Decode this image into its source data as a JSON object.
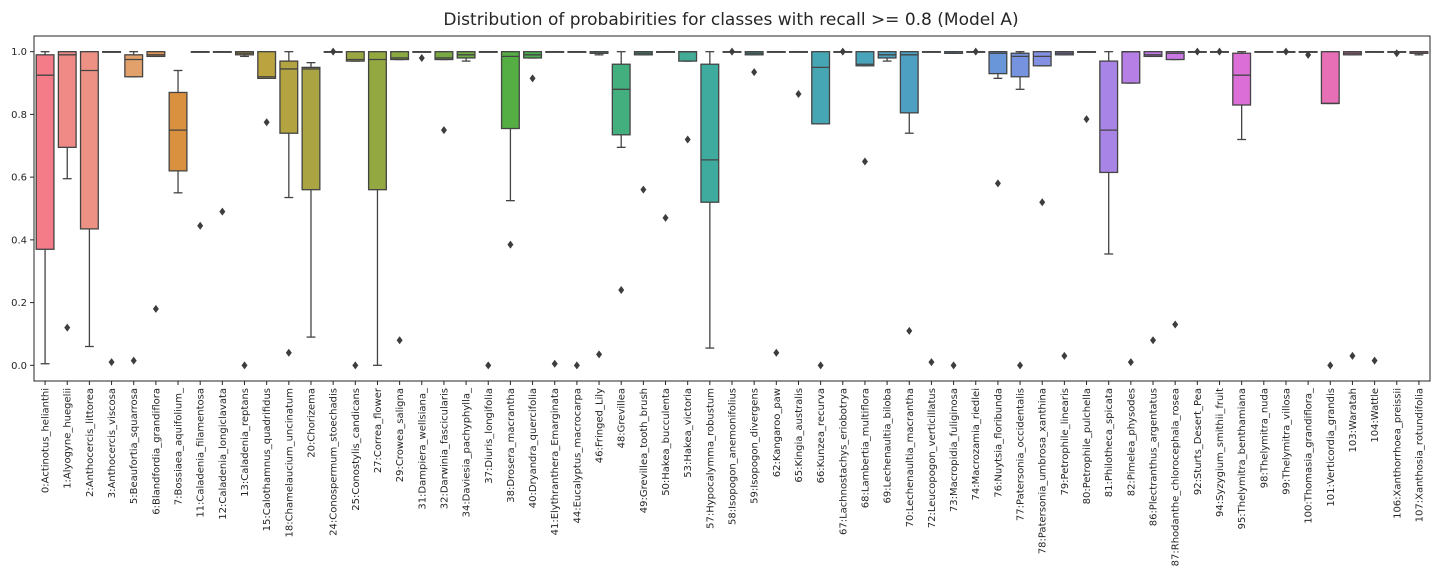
{
  "chart_data": {
    "type": "box",
    "title": "Distribution of probabirities for classes with recall >= 0.8 (Model A)",
    "xlabel": "",
    "ylabel": "",
    "ylim": [
      -0.05,
      1.05
    ],
    "yticks": [
      "0.0",
      "0.2",
      "0.4",
      "0.6",
      "0.8",
      "1.0"
    ],
    "grid": false,
    "legend": "none",
    "categories": [
      "0:Actinotus_helianthi",
      "1:Alyogyne_huegelii",
      "2:Anthocercis_littorea",
      "3:Anthocercis_viscosa",
      "5:Beaufortia_squarrosa",
      "6:Blandfordia_grandiflora",
      "7:Bossiaea_aquifolium_",
      "11:Caladenia_filamentosa",
      "12:Caladenia_longiclavata",
      "13:Caladenia_reptans",
      "15:Calothamnus_quadrifidus",
      "18:Chamelaucium_uncinatum",
      "20:Chorizema",
      "24:Conospermum_stoechadis",
      "25:Conostylis_candicans",
      "27:Correa_flower",
      "29:Crowea_saligna",
      "31:Dampiera_wellsiana_",
      "32:Darwinia_fascicularis",
      "34:Daviesia_pachyphylla_",
      "37:Diuris_longifolia",
      "38:Drosera_macrantha",
      "40:Dryandra_quercifolia",
      "41:Elythranthera_Emarginata",
      "44:Eucalyptus_macrocarpa",
      "46:Fringed_Lily",
      "48:Grevillea",
      "49:Grevillea_tooth_brush",
      "50:Hakea_bucculenta",
      "53:Hakea_victoria",
      "57:Hypocalymma_robustum",
      "58:Isopogon_anemonifolius",
      "59:Isopogon_divergens",
      "62:Kangaroo_paw",
      "65:Kingia_australis",
      "66:Kunzea_recurva",
      "67:Lachnostachys_eriobotrya",
      "68:Lambertia_multiflora",
      "69:Lechenaultia_biloba",
      "70:Lechenaultia_macrantha",
      "72:Leucopogon_verticillatus",
      "73:Macropidia_fuliginosa",
      "74:Macrozamia_riedlei",
      "76:Nuytsia_floribunda",
      "77:Patersonia_occidentalis",
      "78:Patersonia_umbrosa_xanthina",
      "79:Petrophile_linearis",
      "80:Petrophile_pulchella",
      "81:Philotheca_spicata",
      "82:Pimelea_physodes",
      "86:Plectranthus_argentatus",
      "87:Rhodanthe_chlorocephala_rosea",
      "92:Sturts_Desert_Pea",
      "94:Syzygium_smithii_fruit",
      "95:Thelymitra_benthamiana",
      "98:Thelymitra_nuda",
      "99:Thelymitra_villosa",
      "100:Thomasia_grandiflora_",
      "101:Verticordia_grandis",
      "103:Waratah",
      "104:Wattle",
      "106:Xanthorrhoea_preissii",
      "107:Xanthosia_rotundifolia"
    ],
    "colors": [
      "#f37c88",
      "#ef8a86",
      "#ec9184",
      "#e99a79",
      "#e2a06a",
      "#de9652",
      "#d9913f",
      "#d2963f",
      "#c99c3f",
      "#c2a13f",
      "#bba440",
      "#b3a441",
      "#aba443",
      "#a3a542",
      "#9aa641",
      "#93a841",
      "#8ba941",
      "#81a941",
      "#79aa42",
      "#6fab43",
      "#62ad45",
      "#55ae44",
      "#4aae4e",
      "#44ae60",
      "#43ae6c",
      "#43ae75",
      "#43ae7e",
      "#43ad87",
      "#43ad8f",
      "#43ac97",
      "#3eab9e",
      "#42aba4",
      "#43a9a8",
      "#44a8ad",
      "#45a7b0",
      "#46a6b4",
      "#48a5b7",
      "#49a4bb",
      "#4ba2bf",
      "#4ea0c3",
      "#539ec9",
      "#589bcf",
      "#5e99d4",
      "#6896d9",
      "#7593de",
      "#8490e2",
      "#908ce4",
      "#9b87e6",
      "#a884e6",
      "#b57fe6",
      "#c07ae6",
      "#c978e4",
      "#d075e1",
      "#d772dd",
      "#dc6fd7",
      "#e06ed0",
      "#e36ec8",
      "#e56ebf",
      "#e76fb5",
      "#e870aa",
      "#e9729f",
      "#ea7495",
      "#ea768c"
    ],
    "series": [
      {
        "q1": 0.37,
        "median": 0.925,
        "q3": 0.99,
        "whislo": 0.005,
        "whishi": 1.0,
        "fliers": []
      },
      {
        "q1": 0.695,
        "median": 0.99,
        "q3": 1.0,
        "whislo": 0.595,
        "whishi": 1.0,
        "fliers": [
          0.12
        ]
      },
      {
        "q1": 0.435,
        "median": 0.94,
        "q3": 1.0,
        "whislo": 0.06,
        "whishi": 1.0,
        "fliers": []
      },
      {
        "q1": 1.0,
        "median": 1.0,
        "q3": 1.0,
        "whislo": 1.0,
        "whishi": 1.0,
        "fliers": [
          0.01
        ]
      },
      {
        "q1": 0.92,
        "median": 0.975,
        "q3": 0.99,
        "whislo": 0.92,
        "whishi": 1.0,
        "fliers": [
          0.015
        ]
      },
      {
        "q1": 0.985,
        "median": 0.99,
        "q3": 1.0,
        "whislo": 0.985,
        "whishi": 1.0,
        "fliers": [
          0.18
        ]
      },
      {
        "q1": 0.62,
        "median": 0.75,
        "q3": 0.87,
        "whislo": 0.55,
        "whishi": 0.94,
        "fliers": []
      },
      {
        "q1": 1.0,
        "median": 1.0,
        "q3": 1.0,
        "whislo": 1.0,
        "whishi": 1.0,
        "fliers": [
          0.445
        ]
      },
      {
        "q1": 1.0,
        "median": 1.0,
        "q3": 1.0,
        "whislo": 1.0,
        "whishi": 1.0,
        "fliers": [
          0.49
        ]
      },
      {
        "q1": 0.99,
        "median": 0.995,
        "q3": 1.0,
        "whislo": 0.985,
        "whishi": 1.0,
        "fliers": [
          0.0
        ]
      },
      {
        "q1": 0.915,
        "median": 0.92,
        "q3": 1.0,
        "whislo": 0.915,
        "whishi": 1.0,
        "fliers": [
          0.775
        ]
      },
      {
        "q1": 0.74,
        "median": 0.945,
        "q3": 0.97,
        "whislo": 0.535,
        "whishi": 1.0,
        "fliers": [
          0.04
        ]
      },
      {
        "q1": 0.56,
        "median": 0.945,
        "q3": 0.95,
        "whislo": 0.09,
        "whishi": 0.965,
        "fliers": []
      },
      {
        "q1": 1.0,
        "median": 1.0,
        "q3": 1.0,
        "whislo": 1.0,
        "whishi": 1.0,
        "fliers": [
          1.0
        ]
      },
      {
        "q1": 0.97,
        "median": 0.975,
        "q3": 1.0,
        "whislo": 0.97,
        "whishi": 1.0,
        "fliers": [
          0.0
        ]
      },
      {
        "q1": 0.56,
        "median": 0.975,
        "q3": 1.0,
        "whislo": 0.0,
        "whishi": 1.0,
        "fliers": []
      },
      {
        "q1": 0.975,
        "median": 0.98,
        "q3": 1.0,
        "whislo": 0.975,
        "whishi": 1.0,
        "fliers": [
          0.08
        ]
      },
      {
        "q1": 1.0,
        "median": 1.0,
        "q3": 1.0,
        "whislo": 1.0,
        "whishi": 1.0,
        "fliers": [
          0.98
        ]
      },
      {
        "q1": 0.975,
        "median": 0.98,
        "q3": 1.0,
        "whislo": 0.975,
        "whishi": 1.0,
        "fliers": [
          0.75
        ]
      },
      {
        "q1": 0.98,
        "median": 0.99,
        "q3": 1.0,
        "whislo": 0.97,
        "whishi": 1.0,
        "fliers": []
      },
      {
        "q1": 1.0,
        "median": 1.0,
        "q3": 1.0,
        "whislo": 1.0,
        "whishi": 1.0,
        "fliers": [
          0.0
        ]
      },
      {
        "q1": 0.755,
        "median": 0.985,
        "q3": 1.0,
        "whislo": 0.525,
        "whishi": 1.0,
        "fliers": [
          0.385
        ]
      },
      {
        "q1": 0.98,
        "median": 0.99,
        "q3": 1.0,
        "whislo": 0.98,
        "whishi": 1.0,
        "fliers": [
          0.915
        ]
      },
      {
        "q1": 1.0,
        "median": 1.0,
        "q3": 1.0,
        "whislo": 1.0,
        "whishi": 1.0,
        "fliers": [
          0.005
        ]
      },
      {
        "q1": 1.0,
        "median": 1.0,
        "q3": 1.0,
        "whislo": 1.0,
        "whishi": 1.0,
        "fliers": [
          0.0
        ]
      },
      {
        "q1": 0.995,
        "median": 0.995,
        "q3": 1.0,
        "whislo": 0.99,
        "whishi": 1.0,
        "fliers": [
          0.035
        ]
      },
      {
        "q1": 0.735,
        "median": 0.88,
        "q3": 0.96,
        "whislo": 0.695,
        "whishi": 1.0,
        "fliers": [
          0.24
        ]
      },
      {
        "q1": 0.99,
        "median": 0.995,
        "q3": 1.0,
        "whislo": 0.99,
        "whishi": 1.0,
        "fliers": [
          0.56
        ]
      },
      {
        "q1": 1.0,
        "median": 1.0,
        "q3": 1.0,
        "whislo": 1.0,
        "whishi": 1.0,
        "fliers": [
          0.47
        ]
      },
      {
        "q1": 0.97,
        "median": 1.0,
        "q3": 1.0,
        "whislo": 0.97,
        "whishi": 1.0,
        "fliers": [
          0.72
        ]
      },
      {
        "q1": 0.52,
        "median": 0.655,
        "q3": 0.96,
        "whislo": 0.055,
        "whishi": 1.0,
        "fliers": []
      },
      {
        "q1": 1.0,
        "median": 1.0,
        "q3": 1.0,
        "whislo": 1.0,
        "whishi": 1.0,
        "fliers": [
          1.0
        ]
      },
      {
        "q1": 0.99,
        "median": 0.995,
        "q3": 1.0,
        "whislo": 0.99,
        "whishi": 1.0,
        "fliers": [
          0.935
        ]
      },
      {
        "q1": 1.0,
        "median": 1.0,
        "q3": 1.0,
        "whislo": 1.0,
        "whishi": 1.0,
        "fliers": [
          0.04
        ]
      },
      {
        "q1": 1.0,
        "median": 1.0,
        "q3": 1.0,
        "whislo": 1.0,
        "whishi": 1.0,
        "fliers": [
          0.865
        ]
      },
      {
        "q1": 0.77,
        "median": 0.95,
        "q3": 1.0,
        "whislo": 0.77,
        "whishi": 1.0,
        "fliers": [
          0.0
        ]
      },
      {
        "q1": 1.0,
        "median": 1.0,
        "q3": 1.0,
        "whislo": 1.0,
        "whishi": 1.0,
        "fliers": [
          1.0
        ]
      },
      {
        "q1": 0.955,
        "median": 0.96,
        "q3": 1.0,
        "whislo": 0.955,
        "whishi": 1.0,
        "fliers": [
          0.65
        ]
      },
      {
        "q1": 0.98,
        "median": 0.99,
        "q3": 1.0,
        "whislo": 0.97,
        "whishi": 1.0,
        "fliers": []
      },
      {
        "q1": 0.805,
        "median": 0.99,
        "q3": 1.0,
        "whislo": 0.74,
        "whishi": 1.0,
        "fliers": [
          0.11
        ]
      },
      {
        "q1": 1.0,
        "median": 1.0,
        "q3": 1.0,
        "whislo": 1.0,
        "whishi": 1.0,
        "fliers": [
          0.01
        ]
      },
      {
        "q1": 0.995,
        "median": 0.995,
        "q3": 1.0,
        "whislo": 0.995,
        "whishi": 1.0,
        "fliers": [
          0.0
        ]
      },
      {
        "q1": 1.0,
        "median": 1.0,
        "q3": 1.0,
        "whislo": 1.0,
        "whishi": 1.0,
        "fliers": [
          1.0
        ]
      },
      {
        "q1": 0.93,
        "median": 0.995,
        "q3": 1.0,
        "whislo": 0.915,
        "whishi": 1.0,
        "fliers": [
          0.58
        ]
      },
      {
        "q1": 0.92,
        "median": 0.985,
        "q3": 0.995,
        "whislo": 0.88,
        "whishi": 1.0,
        "fliers": [
          0.0
        ]
      },
      {
        "q1": 0.955,
        "median": 0.985,
        "q3": 1.0,
        "whislo": 0.955,
        "whishi": 1.0,
        "fliers": [
          0.52
        ]
      },
      {
        "q1": 0.99,
        "median": 0.995,
        "q3": 1.0,
        "whislo": 0.99,
        "whishi": 1.0,
        "fliers": [
          0.03
        ]
      },
      {
        "q1": 1.0,
        "median": 1.0,
        "q3": 1.0,
        "whislo": 1.0,
        "whishi": 1.0,
        "fliers": [
          0.785
        ]
      },
      {
        "q1": 0.615,
        "median": 0.75,
        "q3": 0.97,
        "whislo": 0.355,
        "whishi": 1.0,
        "fliers": []
      },
      {
        "q1": 0.9,
        "median": 1.0,
        "q3": 1.0,
        "whislo": 0.9,
        "whishi": 1.0,
        "fliers": [
          0.01
        ]
      },
      {
        "q1": 0.985,
        "median": 0.99,
        "q3": 1.0,
        "whislo": 0.985,
        "whishi": 1.0,
        "fliers": [
          0.08
        ]
      },
      {
        "q1": 0.975,
        "median": 0.995,
        "q3": 1.0,
        "whislo": 0.975,
        "whishi": 1.0,
        "fliers": [
          0.13
        ]
      },
      {
        "q1": 1.0,
        "median": 1.0,
        "q3": 1.0,
        "whislo": 1.0,
        "whishi": 1.0,
        "fliers": [
          1.0
        ]
      },
      {
        "q1": 1.0,
        "median": 1.0,
        "q3": 1.0,
        "whislo": 1.0,
        "whishi": 1.0,
        "fliers": [
          1.0
        ]
      },
      {
        "q1": 0.83,
        "median": 0.925,
        "q3": 0.995,
        "whislo": 0.72,
        "whishi": 1.0,
        "fliers": []
      },
      {
        "q1": 1.0,
        "median": 1.0,
        "q3": 1.0,
        "whislo": 1.0,
        "whishi": 1.0,
        "fliers": []
      },
      {
        "q1": 1.0,
        "median": 1.0,
        "q3": 1.0,
        "whislo": 1.0,
        "whishi": 1.0,
        "fliers": [
          1.0
        ]
      },
      {
        "q1": 1.0,
        "median": 1.0,
        "q3": 1.0,
        "whislo": 1.0,
        "whishi": 1.0,
        "fliers": [
          0.99
        ]
      },
      {
        "q1": 0.835,
        "median": 0.835,
        "q3": 1.0,
        "whislo": 0.835,
        "whishi": 1.0,
        "fliers": [
          0.0
        ]
      },
      {
        "q1": 0.99,
        "median": 0.995,
        "q3": 1.0,
        "whislo": 0.99,
        "whishi": 1.0,
        "fliers": [
          0.03
        ]
      },
      {
        "q1": 1.0,
        "median": 1.0,
        "q3": 1.0,
        "whislo": 1.0,
        "whishi": 1.0,
        "fliers": [
          0.015
        ]
      },
      {
        "q1": 1.0,
        "median": 1.0,
        "q3": 1.0,
        "whislo": 1.0,
        "whishi": 1.0,
        "fliers": [
          0.995
        ]
      },
      {
        "q1": 0.995,
        "median": 0.995,
        "q3": 1.0,
        "whislo": 0.99,
        "whishi": 1.0,
        "fliers": []
      }
    ]
  }
}
